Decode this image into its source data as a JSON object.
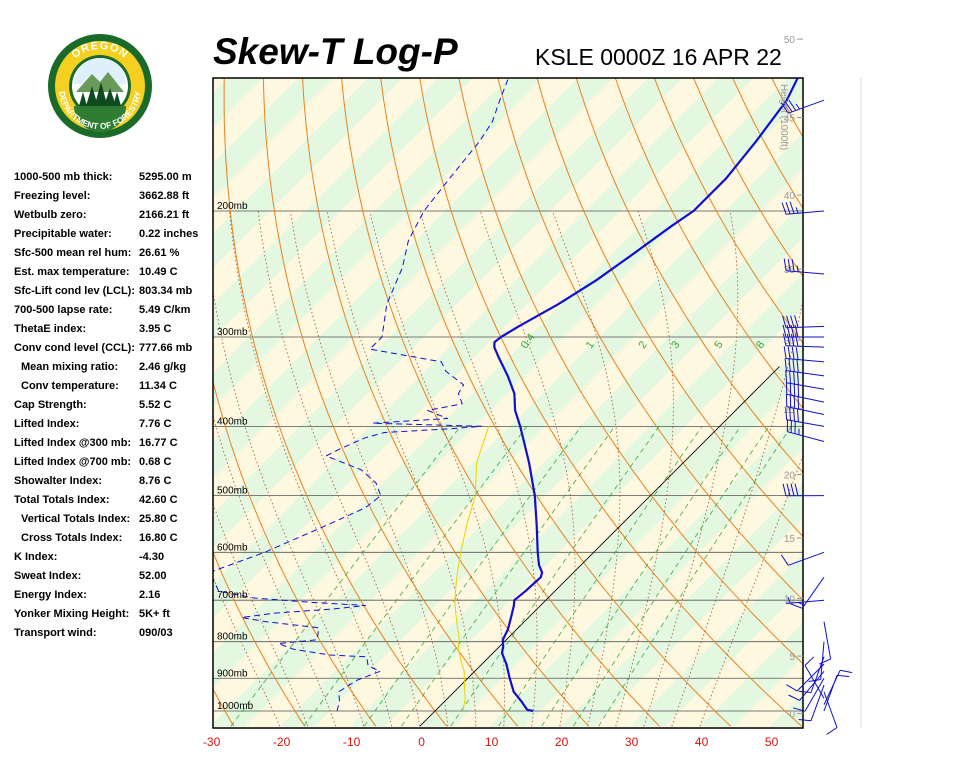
{
  "header": {
    "title": "Skew-T Log-P",
    "station": "KSLE 0000Z 16 APR 22"
  },
  "logo": {
    "text_top": "OREGON",
    "text_bottom": "DEPARTMENT OF FORESTRY",
    "icon": "oregon-department-of-forestry-seal",
    "colors": {
      "ring": "#1a6b2a",
      "fill": "#f5d020",
      "inner": "#ffffff"
    }
  },
  "stats": [
    {
      "label": "1000-500 mb thick:",
      "value": "5295.00 m",
      "indent": false
    },
    {
      "label": "Freezing level:",
      "value": "3662.88 ft",
      "indent": false
    },
    {
      "label": "Wetbulb zero:",
      "value": "2166.21 ft",
      "indent": false
    },
    {
      "label": "Precipitable water:",
      "value": "0.22 inches",
      "indent": false
    },
    {
      "label": "Sfc-500 mean rel hum:",
      "value": "26.61 %",
      "indent": false
    },
    {
      "label": "Est. max temperature:",
      "value": "10.49 C",
      "indent": false
    },
    {
      "label": "Sfc-Lift cond lev (LCL):",
      "value": "803.34 mb",
      "indent": false
    },
    {
      "label": "700-500 lapse rate:",
      "value": "5.49 C/km",
      "indent": false
    },
    {
      "label": "ThetaE index:",
      "value": "3.95 C",
      "indent": false
    },
    {
      "label": "Conv cond level (CCL):",
      "value": "777.66 mb",
      "indent": false
    },
    {
      "label": "Mean mixing ratio:",
      "value": "2.46 g/kg",
      "indent": true
    },
    {
      "label": "Conv temperature:",
      "value": "11.34 C",
      "indent": true
    },
    {
      "label": "Cap Strength:",
      "value": "5.52 C",
      "indent": false
    },
    {
      "label": "Lifted Index:",
      "value": "7.76 C",
      "indent": false
    },
    {
      "label": "Lifted Index @300 mb:",
      "value": "16.77 C",
      "indent": false
    },
    {
      "label": "Lifted Index @700 mb:",
      "value": "0.68 C",
      "indent": false
    },
    {
      "label": "Showalter Index:",
      "value": "8.76 C",
      "indent": false
    },
    {
      "label": "Total Totals Index:",
      "value": "42.60 C",
      "indent": false
    },
    {
      "label": "Vertical Totals Index:",
      "value": "25.80 C",
      "indent": true
    },
    {
      "label": "Cross Totals Index:",
      "value": "16.80 C",
      "indent": true
    },
    {
      "label": "K Index:",
      "value": "-4.30",
      "indent": false
    },
    {
      "label": "Sweat Index:",
      "value": "52.00",
      "indent": false
    },
    {
      "label": "Energy Index:",
      "value": "2.16",
      "indent": false
    },
    {
      "label": "Yonker Mixing Height:",
      "value": "5K+ ft",
      "indent": false
    },
    {
      "label": "Transport wind:",
      "value": "090/03",
      "indent": false
    }
  ],
  "chart_data": {
    "type": "line",
    "chart_kind": "skew-t log-p",
    "xlabel_unit": "C",
    "temp_ticks": [
      -30,
      -20,
      -10,
      0,
      10,
      20,
      30,
      40,
      50
    ],
    "pressure_levels": [
      {
        "p": 1000,
        "label": "1000mb"
      },
      {
        "p": 900,
        "label": "900mb"
      },
      {
        "p": 800,
        "label": "800mb"
      },
      {
        "p": 700,
        "label": "700mb"
      },
      {
        "p": 600,
        "label": "600mb"
      },
      {
        "p": 500,
        "label": "500mb"
      },
      {
        "p": 400,
        "label": "400mb"
      },
      {
        "p": 300,
        "label": "300mb"
      },
      {
        "p": 200,
        "label": "200mb"
      }
    ],
    "height_axis_label": "Height (1000ft)",
    "height_ticks": [
      {
        "h": 0,
        "p": 1008
      },
      {
        "h": 5,
        "p": 838
      },
      {
        "h": 10,
        "p": 696
      },
      {
        "h": 15,
        "p": 573
      },
      {
        "h": 20,
        "p": 467
      },
      {
        "h": 25,
        "p": 378
      },
      {
        "h": 30,
        "p": 303
      },
      {
        "h": 35,
        "p": 241
      },
      {
        "h": 40,
        "p": 190
      },
      {
        "h": 45,
        "p": 148
      },
      {
        "h": 50,
        "p": 115
      }
    ],
    "mixing_ratio_labels": [
      "0.4",
      "1",
      "2",
      "3",
      "5",
      "8"
    ],
    "temperature_profile": [
      {
        "p": 1000,
        "t": 14
      },
      {
        "p": 996,
        "t": 13
      },
      {
        "p": 970,
        "t": 11
      },
      {
        "p": 940,
        "t": 8.5
      },
      {
        "p": 900,
        "t": 6
      },
      {
        "p": 860,
        "t": 3.5
      },
      {
        "p": 830,
        "t": 1.3
      },
      {
        "p": 812,
        "t": 0.5
      },
      {
        "p": 795,
        "t": -0.5
      },
      {
        "p": 770,
        "t": -1.2
      },
      {
        "p": 740,
        "t": -2.5
      },
      {
        "p": 712,
        "t": -3.8
      },
      {
        "p": 700,
        "t": -4.5
      },
      {
        "p": 680,
        "t": -4.2
      },
      {
        "p": 650,
        "t": -4.0
      },
      {
        "p": 640,
        "t": -4.5
      },
      {
        "p": 625,
        "t": -6.0
      },
      {
        "p": 600,
        "t": -8.0
      },
      {
        "p": 550,
        "t": -12.0
      },
      {
        "p": 500,
        "t": -16.5
      },
      {
        "p": 450,
        "t": -22.0
      },
      {
        "p": 400,
        "t": -28.5
      },
      {
        "p": 380,
        "t": -31.5
      },
      {
        "p": 360,
        "t": -34.0
      },
      {
        "p": 340,
        "t": -37.5
      },
      {
        "p": 320,
        "t": -41.5
      },
      {
        "p": 310,
        "t": -43.5
      },
      {
        "p": 305,
        "t": -44.2
      },
      {
        "p": 300,
        "t": -44.0
      },
      {
        "p": 290,
        "t": -43.0
      },
      {
        "p": 270,
        "t": -40.5
      },
      {
        "p": 250,
        "t": -38.5
      },
      {
        "p": 230,
        "t": -37.0
      },
      {
        "p": 210,
        "t": -35.5
      },
      {
        "p": 200,
        "t": -34.5
      },
      {
        "p": 180,
        "t": -34.5
      },
      {
        "p": 160,
        "t": -35.5
      },
      {
        "p": 140,
        "t": -37.0
      },
      {
        "p": 120,
        "t": -40.5
      },
      {
        "p": 110,
        "t": -42.5
      }
    ],
    "dewpoint_profile": [
      {
        "p": 1000,
        "t": -14
      },
      {
        "p": 970,
        "t": -15
      },
      {
        "p": 940,
        "t": -16.5
      },
      {
        "p": 905,
        "t": -15.5
      },
      {
        "p": 880,
        "t": -13.5
      },
      {
        "p": 865,
        "t": -16
      },
      {
        "p": 840,
        "t": -17.5
      },
      {
        "p": 835,
        "t": -23
      },
      {
        "p": 820,
        "t": -29
      },
      {
        "p": 805,
        "t": -32
      },
      {
        "p": 795,
        "t": -27
      },
      {
        "p": 765,
        "t": -28.5
      },
      {
        "p": 750,
        "t": -37
      },
      {
        "p": 740,
        "t": -41
      },
      {
        "p": 730,
        "t": -37
      },
      {
        "p": 720,
        "t": -29
      },
      {
        "p": 712,
        "t": -25
      },
      {
        "p": 705,
        "t": -33
      },
      {
        "p": 695,
        "t": -42
      },
      {
        "p": 680,
        "t": -48
      },
      {
        "p": 660,
        "t": -50
      },
      {
        "p": 640,
        "t": -52
      },
      {
        "p": 600,
        "t": -47
      },
      {
        "p": 550,
        "t": -42
      },
      {
        "p": 520,
        "t": -39
      },
      {
        "p": 500,
        "t": -38.5
      },
      {
        "p": 480,
        "t": -41
      },
      {
        "p": 460,
        "t": -45
      },
      {
        "p": 440,
        "t": -52
      },
      {
        "p": 430,
        "t": -51
      },
      {
        "p": 415,
        "t": -49
      },
      {
        "p": 408,
        "t": -47
      },
      {
        "p": 403,
        "t": -38
      },
      {
        "p": 400,
        "t": -34
      },
      {
        "p": 396,
        "t": -50
      },
      {
        "p": 390,
        "t": -40
      },
      {
        "p": 380,
        "t": -44
      },
      {
        "p": 372,
        "t": -40
      },
      {
        "p": 360,
        "t": -42
      },
      {
        "p": 350,
        "t": -42.5
      },
      {
        "p": 335,
        "t": -47
      },
      {
        "p": 325,
        "t": -49
      },
      {
        "p": 312,
        "t": -61
      },
      {
        "p": 300,
        "t": -61
      },
      {
        "p": 270,
        "t": -65
      },
      {
        "p": 240,
        "t": -68
      },
      {
        "p": 220,
        "t": -71
      },
      {
        "p": 200,
        "t": -73
      },
      {
        "p": 180,
        "t": -74
      },
      {
        "p": 160,
        "t": -75
      },
      {
        "p": 150,
        "t": -76
      },
      {
        "p": 140,
        "t": -78
      },
      {
        "p": 130,
        "t": -80
      },
      {
        "p": 120,
        "t": -82
      }
    ],
    "wetbulb_profile": [
      {
        "p": 1000,
        "t": 4.0
      },
      {
        "p": 960,
        "t": 2.5
      },
      {
        "p": 920,
        "t": 0.5
      },
      {
        "p": 880,
        "t": -1.5
      },
      {
        "p": 850,
        "t": -3.5
      },
      {
        "p": 820,
        "t": -5.5
      },
      {
        "p": 790,
        "t": -7.0
      },
      {
        "p": 760,
        "t": -9.0
      },
      {
        "p": 730,
        "t": -11.0
      },
      {
        "p": 700,
        "t": -13.0
      },
      {
        "p": 650,
        "t": -16.0
      },
      {
        "p": 600,
        "t": -19.0
      },
      {
        "p": 550,
        "t": -22.0
      },
      {
        "p": 500,
        "t": -25.0
      },
      {
        "p": 450,
        "t": -29.5
      },
      {
        "p": 400,
        "t": -33.0
      }
    ],
    "wind_barbs": [
      {
        "p": 1000,
        "dir": 20,
        "spd": 10
      },
      {
        "p": 980,
        "dir": 25,
        "spd": 10
      },
      {
        "p": 960,
        "dir": 330,
        "spd": 10
      },
      {
        "p": 940,
        "dir": 160,
        "spd": 10
      },
      {
        "p": 920,
        "dir": 200,
        "spd": 10
      },
      {
        "p": 900,
        "dir": 210,
        "spd": 10
      },
      {
        "p": 880,
        "dir": 220,
        "spd": 10
      },
      {
        "p": 860,
        "dir": 225,
        "spd": 10
      },
      {
        "p": 840,
        "dir": 200,
        "spd": 10
      },
      {
        "p": 800,
        "dir": 185,
        "spd": 10
      },
      {
        "p": 750,
        "dir": 170,
        "spd": 10
      },
      {
        "p": 700,
        "dir": 265,
        "spd": 5
      },
      {
        "p": 650,
        "dir": 215,
        "spd": 15
      },
      {
        "p": 600,
        "dir": 250,
        "spd": 10
      },
      {
        "p": 500,
        "dir": 270,
        "spd": 40
      },
      {
        "p": 420,
        "dir": 285,
        "spd": 35
      },
      {
        "p": 400,
        "dir": 280,
        "spd": 40
      },
      {
        "p": 385,
        "dir": 282,
        "spd": 40
      },
      {
        "p": 370,
        "dir": 282,
        "spd": 40
      },
      {
        "p": 355,
        "dir": 280,
        "spd": 40
      },
      {
        "p": 340,
        "dir": 278,
        "spd": 40
      },
      {
        "p": 325,
        "dir": 275,
        "spd": 40
      },
      {
        "p": 310,
        "dir": 272,
        "spd": 40
      },
      {
        "p": 300,
        "dir": 270,
        "spd": 40
      },
      {
        "p": 290,
        "dir": 268,
        "spd": 40
      },
      {
        "p": 245,
        "dir": 275,
        "spd": 35
      },
      {
        "p": 200,
        "dir": 265,
        "spd": 35
      },
      {
        "p": 140,
        "dir": 250,
        "spd": 35
      }
    ]
  }
}
